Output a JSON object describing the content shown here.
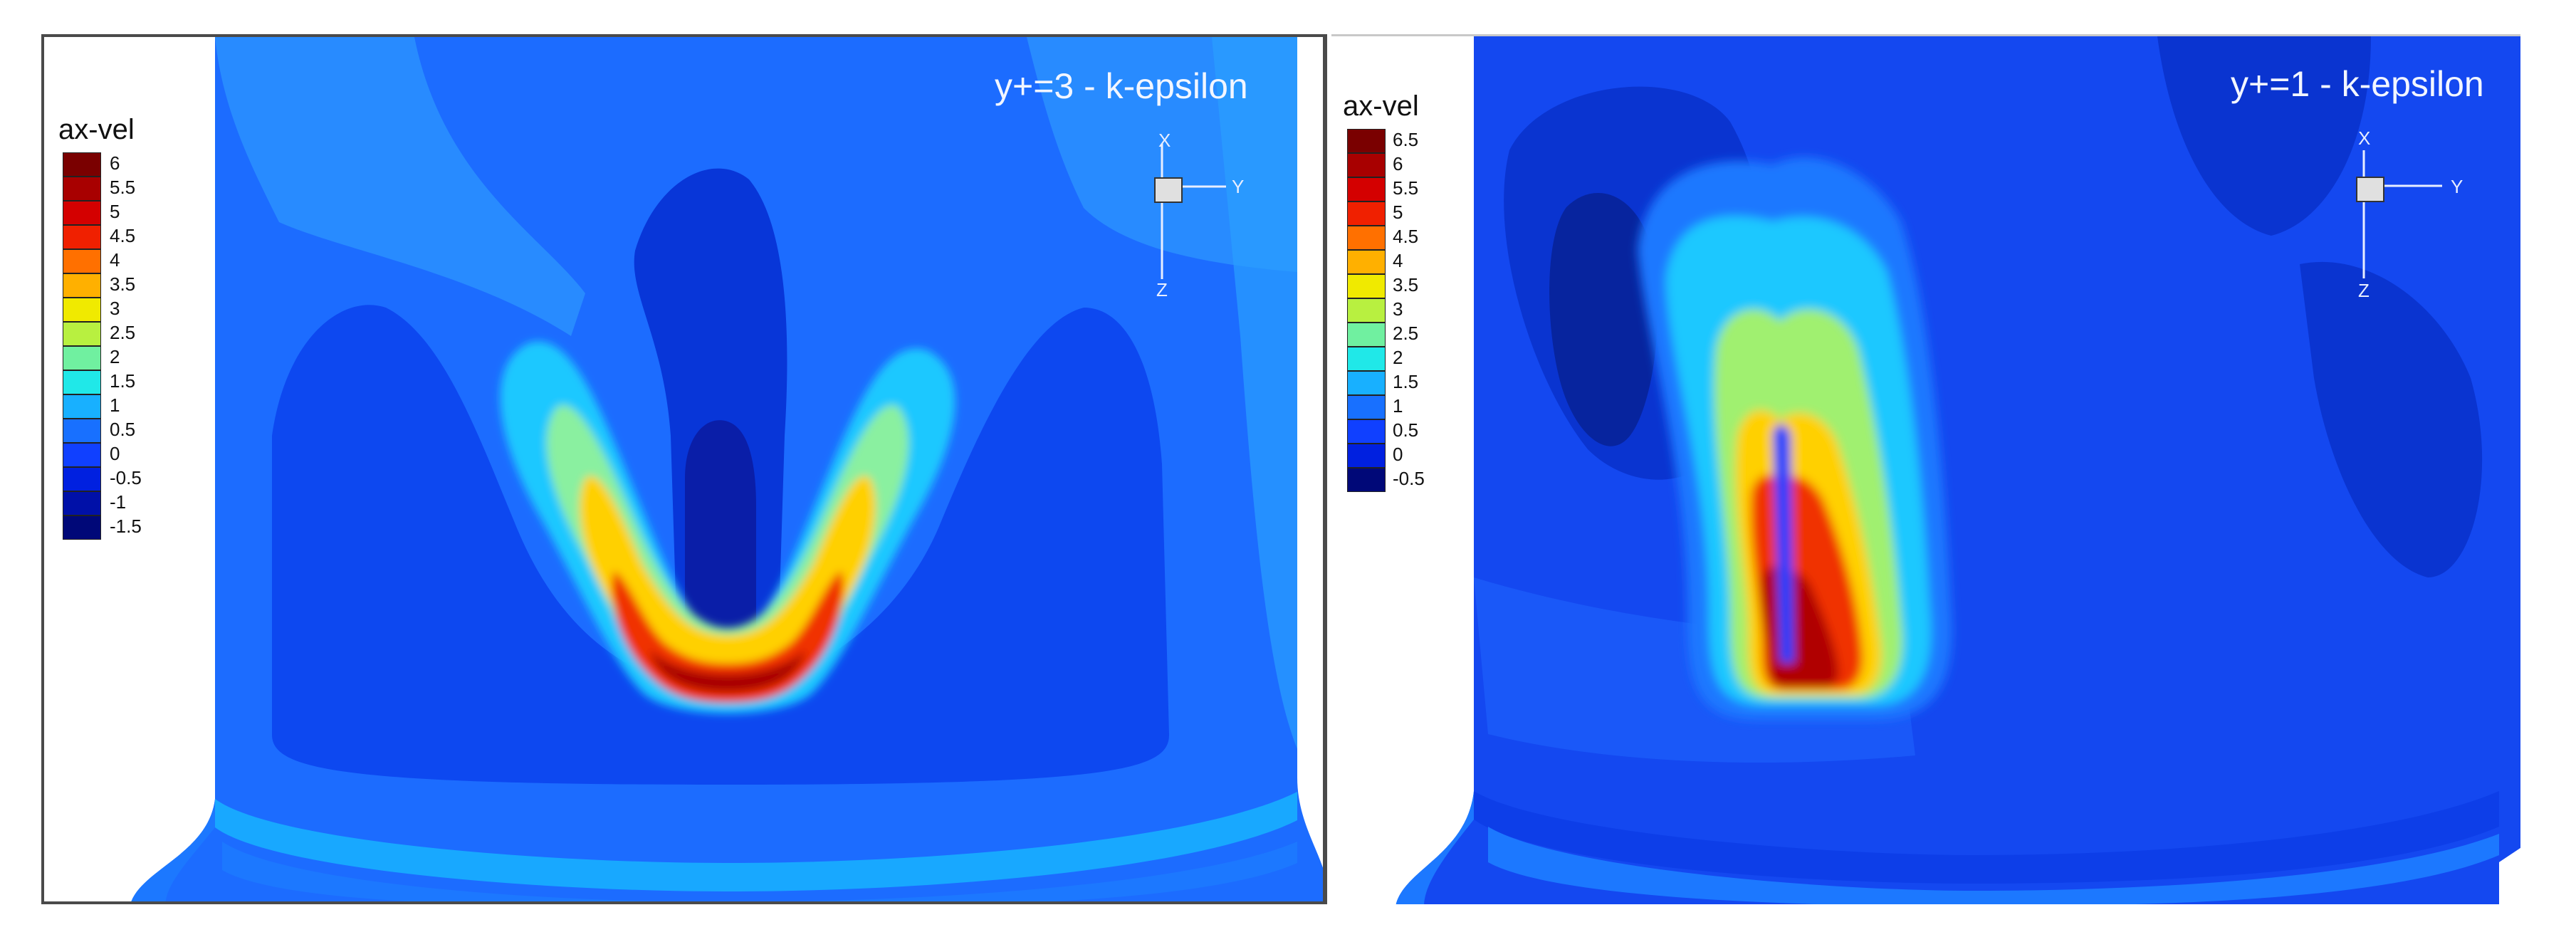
{
  "panels": [
    {
      "title": "y+=3 - k-epsilon",
      "legend": {
        "title": "ax-vel",
        "labels": [
          "6",
          "5.5",
          "5",
          "4.5",
          "4",
          "3.5",
          "3",
          "2.5",
          "2",
          "1.5",
          "1",
          "0.5",
          "0",
          "-0.5",
          "-1",
          "-1.5"
        ],
        "colors": [
          "#7a0000",
          "#a80000",
          "#d40000",
          "#f02000",
          "#ff7000",
          "#ffb000",
          "#f0ea00",
          "#b8f040",
          "#70f0a0",
          "#20e8e8",
          "#18b0ff",
          "#1870ff",
          "#1040ff",
          "#0020e0",
          "#0010a8",
          "#000878"
        ]
      },
      "axes": {
        "x": "X",
        "y": "Y",
        "z": "Z"
      }
    },
    {
      "title": "y+=1 - k-epsilon",
      "legend": {
        "title": "ax-vel",
        "labels": [
          "6.5",
          "6",
          "5.5",
          "5",
          "4.5",
          "4",
          "3.5",
          "3",
          "2.5",
          "2",
          "1.5",
          "1",
          "0.5",
          "0",
          "-0.5"
        ],
        "colors": [
          "#7a0000",
          "#a80000",
          "#d40000",
          "#f02000",
          "#ff7000",
          "#ffb000",
          "#f0ea00",
          "#b8f040",
          "#70f0a0",
          "#20e8e8",
          "#18b0ff",
          "#1870ff",
          "#1040ff",
          "#0020e0",
          "#000878"
        ]
      },
      "axes": {
        "x": "X",
        "y": "Y",
        "z": "Z"
      }
    }
  ]
}
